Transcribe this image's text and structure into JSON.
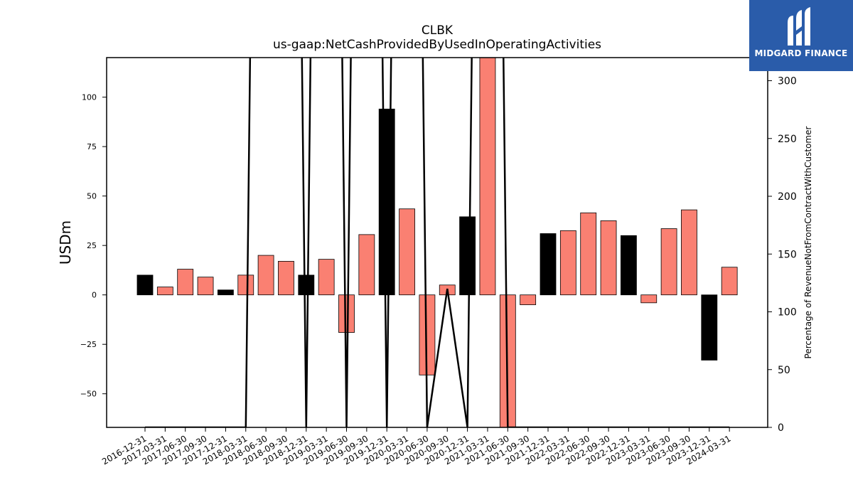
{
  "chart_data": {
    "type": "bar",
    "title": "CLBK",
    "subtitle": "us-gaap:NetCashProvidedByUsedInOperatingActivities",
    "ylabel": "USDm",
    "ylabel_right": "Percentage of RevenueNotFromContractWithCustomer",
    "ylim": [
      -67,
      120
    ],
    "ylim_right": [
      0,
      320
    ],
    "yticks": [
      -50,
      -25,
      0,
      25,
      50,
      75,
      100
    ],
    "yticks_right": [
      0,
      50,
      100,
      150,
      200,
      250,
      300
    ],
    "categories": [
      "2016-12-31",
      "2017-03-31",
      "2017-06-30",
      "2017-09-30",
      "2017-12-31",
      "2018-03-31",
      "2018-06-30",
      "2018-09-30",
      "2018-12-31",
      "2019-03-31",
      "2019-06-30",
      "2019-09-30",
      "2019-12-31",
      "2020-03-31",
      "2020-06-30",
      "2020-09-30",
      "2020-12-31",
      "2021-03-31",
      "2021-06-30",
      "2021-09-30",
      "2021-12-31",
      "2022-03-31",
      "2022-06-30",
      "2022-09-30",
      "2022-12-31",
      "2023-03-31",
      "2023-06-30",
      "2023-09-30",
      "2023-12-31",
      "2024-03-31"
    ],
    "values": [
      10,
      4,
      13,
      9,
      2.5,
      10,
      20,
      17,
      10,
      18,
      -19,
      30.5,
      94,
      43.5,
      -40.5,
      5,
      39.5,
      125,
      -75,
      -5,
      31,
      32.5,
      41.5,
      37.5,
      30,
      -4,
      33.5,
      43,
      -33,
      14
    ],
    "bar_colors": [
      "#000000",
      "#fa8072",
      "#fa8072",
      "#fa8072",
      "#000000",
      "#fa8072",
      "#fa8072",
      "#fa8072",
      "#000000",
      "#fa8072",
      "#fa8072",
      "#fa8072",
      "#000000",
      "#fa8072",
      "#fa8072",
      "#fa8072",
      "#000000",
      "#fa8072",
      "#fa8072",
      "#fa8072",
      "#000000",
      "#fa8072",
      "#fa8072",
      "#fa8072",
      "#000000",
      "#fa8072",
      "#fa8072",
      "#fa8072",
      "#000000",
      "#fa8072"
    ],
    "line_values": [
      0,
      0,
      0,
      0,
      0,
      0,
      1500,
      1500,
      0,
      1500,
      0,
      1500,
      0,
      1500,
      0,
      120,
      0,
      1500,
      0,
      0,
      0,
      0,
      0,
      0,
      0,
      0,
      0,
      0,
      0,
      0
    ],
    "line_color": "#000000",
    "grid": false
  },
  "logo": {
    "text": "MIDGARD FINANCE",
    "color": "#2a5caa"
  }
}
